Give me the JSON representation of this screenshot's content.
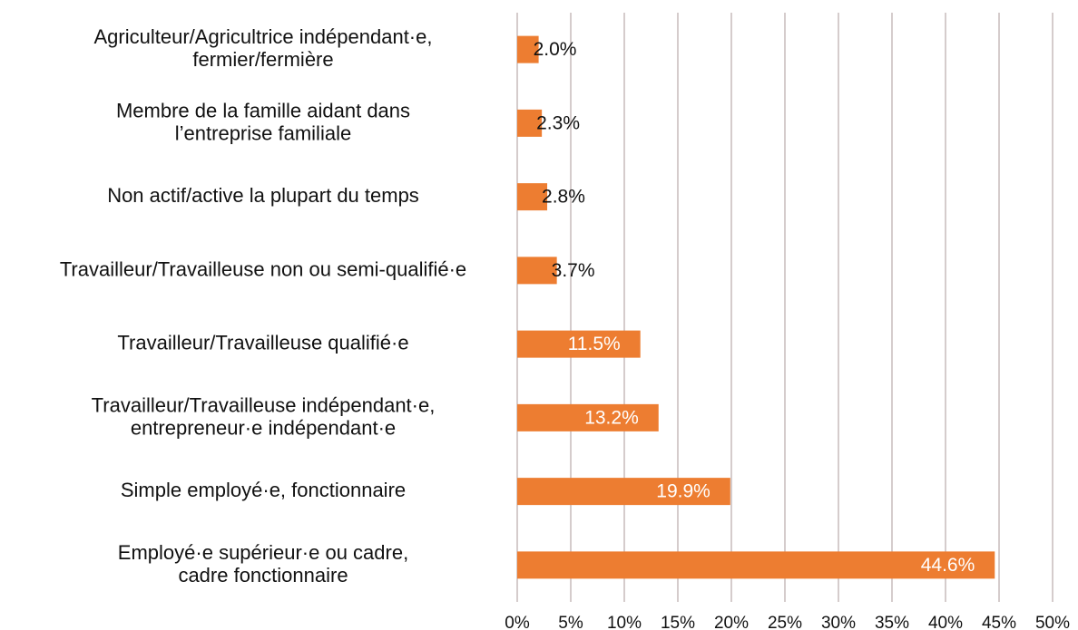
{
  "chart_data": {
    "type": "barh",
    "categories": [
      "Agriculteur/Agricultrice indépendant·e,\nfermier/fermière",
      "Membre de la famille aidant dans\nl’entreprise familiale",
      "Non actif/active la plupart du temps",
      "Travailleur/Travailleuse non ou semi-qualifié·e",
      "Travailleur/Travailleuse qualifié·e",
      "Travailleur/Travailleuse indépendant·e,\nentrepreneur·e indépendant·e",
      "Simple employé·e, fonctionnaire",
      "Employé·e supérieur·e ou cadre,\ncadre fonctionnaire"
    ],
    "values": [
      2.0,
      2.3,
      2.8,
      3.7,
      11.5,
      13.2,
      19.9,
      44.6
    ],
    "value_labels": [
      "2.0%",
      "2.3%",
      "2.8%",
      "3.7%",
      "11.5%",
      "13.2%",
      "19.9%",
      "44.6%"
    ],
    "color": "#ed7d31",
    "xlim": [
      0,
      50
    ],
    "xticks": [
      {
        "value": 0,
        "label": "0%"
      },
      {
        "value": 5,
        "label": "5%"
      },
      {
        "value": 10,
        "label": "10%"
      },
      {
        "value": 15,
        "label": "15%"
      },
      {
        "value": 20,
        "label": "20%"
      },
      {
        "value": 25,
        "label": "25%"
      },
      {
        "value": 30,
        "label": "30%"
      },
      {
        "value": 35,
        "label": "35%"
      },
      {
        "value": 40,
        "label": "40%"
      },
      {
        "value": 45,
        "label": "45%"
      },
      {
        "value": 50,
        "label": "50%"
      }
    ],
    "grid": true
  }
}
